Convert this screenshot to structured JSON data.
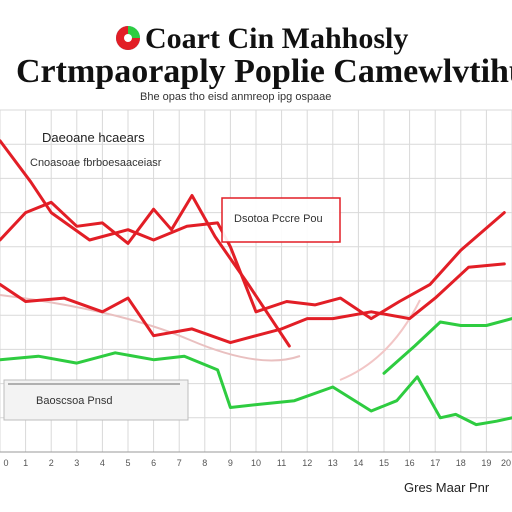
{
  "header": {
    "title_line1": "Coart Cin Mahhosly",
    "title_line2": "Crtmpaoraply Poplie Camewlvtihu",
    "subtitle": "Bhe opas tho eisd anmreop ipg ospaae"
  },
  "logo": {
    "name": "pie-logo-icon",
    "colors": [
      "#e21e26",
      "#2ecc40",
      "#1ab0d8"
    ]
  },
  "chart_data": {
    "type": "line",
    "title": "Coart Cin Mahhosly",
    "subtitle": "Crtmpaoraply Poplie Camewlvtihu",
    "annotation_top_left": "Daeoane hcaears",
    "annotation_top_left_sub": "Cnoasoae fbrboesaaceiasr",
    "callout_box": "Dsotoa Pccre Pou",
    "inset_label": "Baoscsoa Pnsd",
    "footer_right": "Gres Maar Pnr",
    "tick_labels": [
      "0",
      "1",
      "2",
      "3",
      "4",
      "5",
      "6",
      "7",
      "8",
      "9",
      "10",
      "11",
      "12",
      "13",
      "14",
      "15",
      "16",
      "17",
      "18",
      "19",
      "20"
    ],
    "x": [
      0,
      1,
      2,
      3,
      4,
      5,
      6,
      7,
      8,
      9,
      10,
      11,
      12,
      13,
      14,
      15,
      16,
      17,
      18,
      19,
      20
    ],
    "xlim": [
      0,
      20
    ],
    "ylim": [
      0,
      100
    ],
    "grid": true,
    "series": [
      {
        "color": "#e21e26",
        "x": [
          0,
          1.2,
          2,
          3.5,
          5,
          6,
          7.3,
          8.5,
          9,
          10,
          11.2,
          12.3,
          13.3,
          14.5,
          15.6,
          16.8,
          18,
          19.7
        ],
        "y": [
          91,
          79,
          70,
          62,
          65,
          62,
          66,
          67,
          60,
          41,
          44,
          43,
          45,
          39,
          44,
          49,
          59,
          70
        ]
      },
      {
        "color": "#e21e26",
        "x": [
          0,
          1,
          2.5,
          4,
          5,
          6,
          7.5,
          9,
          10,
          11,
          12,
          13,
          14.5,
          16,
          17,
          18.3,
          19.7
        ],
        "y": [
          49,
          44,
          45,
          41,
          45,
          34,
          36,
          32,
          34,
          36,
          39,
          39,
          41,
          39,
          45,
          54,
          55
        ]
      },
      {
        "color": "#e21e26",
        "x": [
          0,
          1,
          2,
          3,
          4,
          5,
          6,
          6.7,
          7.5,
          8.4,
          9.7,
          11.3
        ],
        "y": [
          62,
          70,
          73,
          66,
          67,
          61,
          71,
          65,
          75,
          63,
          49,
          31
        ]
      },
      {
        "color": "#2ecc40",
        "x": [
          0,
          1.5,
          3,
          4.5,
          6,
          7.2,
          8.5,
          9,
          10.2,
          11.5,
          13,
          14.5,
          15.5,
          16.3,
          17.2,
          17.8,
          18.6,
          19.4,
          20
        ],
        "y": [
          27,
          28,
          26,
          29,
          27,
          28,
          24,
          13,
          14,
          15,
          19,
          12,
          15,
          22,
          10,
          11,
          8,
          9,
          10
        ]
      },
      {
        "color": "#2ecc40",
        "x": [
          15,
          16.2,
          17.2,
          18,
          19,
          20
        ],
        "y": [
          23,
          31,
          38,
          37,
          37,
          39
        ]
      }
    ]
  }
}
